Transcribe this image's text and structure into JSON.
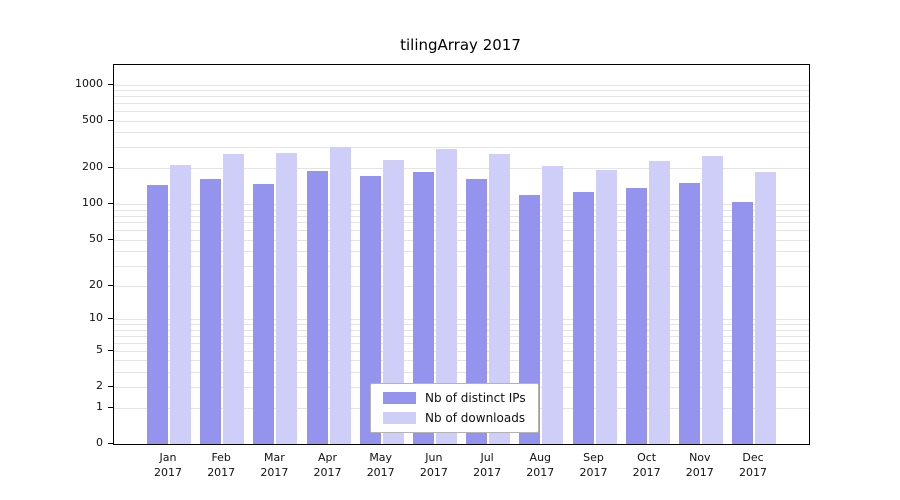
{
  "title": "tilingArray 2017",
  "legend": {
    "items": [
      {
        "label": "Nb of distinct IPs"
      },
      {
        "label": "Nb of downloads"
      }
    ]
  },
  "chart_data": {
    "type": "bar",
    "title": "tilingArray 2017",
    "categories": [
      "Jan 2017",
      "Feb 2017",
      "Mar 2017",
      "Apr 2017",
      "May 2017",
      "Jun 2017",
      "Jul 2017",
      "Aug 2017",
      "Sep 2017",
      "Oct 2017",
      "Nov 2017",
      "Dec 2017"
    ],
    "series": [
      {
        "name": "Nb of distinct IPs",
        "color": "#9494ef",
        "values": [
          145,
          162,
          148,
          190,
          172,
          188,
          163,
          120,
          126,
          138,
          152,
          105
        ]
      },
      {
        "name": "Nb of downloads",
        "color": "#cfcef8",
        "values": [
          215,
          265,
          270,
          300,
          235,
          290,
          265,
          210,
          195,
          230,
          255,
          185
        ]
      }
    ],
    "y_ticks": [
      0,
      1,
      2,
      5,
      10,
      20,
      50,
      100,
      200,
      500,
      1000
    ],
    "y_scale": "log1p",
    "ylim": [
      0,
      1465
    ],
    "grid": true,
    "legend_position": "lower center",
    "xlabel": "",
    "ylabel": ""
  }
}
